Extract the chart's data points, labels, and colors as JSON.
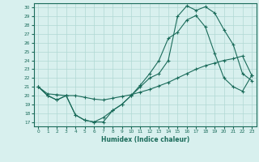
{
  "xlabel": "Humidex (Indice chaleur)",
  "xlim": [
    -0.5,
    23.5
  ],
  "ylim": [
    16.5,
    30.5
  ],
  "xticks": [
    0,
    1,
    2,
    3,
    4,
    5,
    6,
    7,
    8,
    9,
    10,
    11,
    12,
    13,
    14,
    15,
    16,
    17,
    18,
    19,
    20,
    21,
    22,
    23
  ],
  "yticks": [
    17,
    18,
    19,
    20,
    21,
    22,
    23,
    24,
    25,
    26,
    27,
    28,
    29,
    30
  ],
  "line_color": "#1a6b5a",
  "bg_color": "#d8f0ee",
  "grid_color": "#b0d8d4",
  "line1_x": [
    0,
    1,
    2,
    3,
    4,
    5,
    6,
    7,
    8,
    9,
    10,
    11,
    12,
    13,
    14,
    15,
    16,
    17,
    18,
    19,
    20,
    21,
    22,
    23
  ],
  "line1_y": [
    21,
    20,
    19.5,
    20,
    17.8,
    17.2,
    17.0,
    17.0,
    18.3,
    19.0,
    20.0,
    21.0,
    22.0,
    22.5,
    24.0,
    29.0,
    30.2,
    29.7,
    30.1,
    29.4,
    27.5,
    25.8,
    22.5,
    21.7
  ],
  "line2_x": [
    0,
    1,
    2,
    3,
    4,
    5,
    6,
    7,
    8,
    9,
    10,
    11,
    12,
    13,
    14,
    15,
    16,
    17,
    18,
    19,
    20,
    21,
    22,
    23
  ],
  "line2_y": [
    21,
    20,
    19.5,
    20,
    17.8,
    17.2,
    17.0,
    17.5,
    18.3,
    19.0,
    20.0,
    21.2,
    22.5,
    24.0,
    26.5,
    27.2,
    28.6,
    29.1,
    27.8,
    24.8,
    22.0,
    21.0,
    20.5,
    22.3
  ],
  "line3_x": [
    0,
    1,
    2,
    3,
    4,
    5,
    6,
    7,
    8,
    9,
    10,
    11,
    12,
    13,
    14,
    15,
    16,
    17,
    18,
    19,
    20,
    21,
    22,
    23
  ],
  "line3_y": [
    21,
    20.2,
    20.1,
    20.0,
    20.0,
    19.8,
    19.6,
    19.5,
    19.7,
    19.9,
    20.1,
    20.4,
    20.7,
    21.1,
    21.5,
    22.0,
    22.5,
    23.0,
    23.4,
    23.7,
    24.0,
    24.2,
    24.5,
    22.3
  ]
}
